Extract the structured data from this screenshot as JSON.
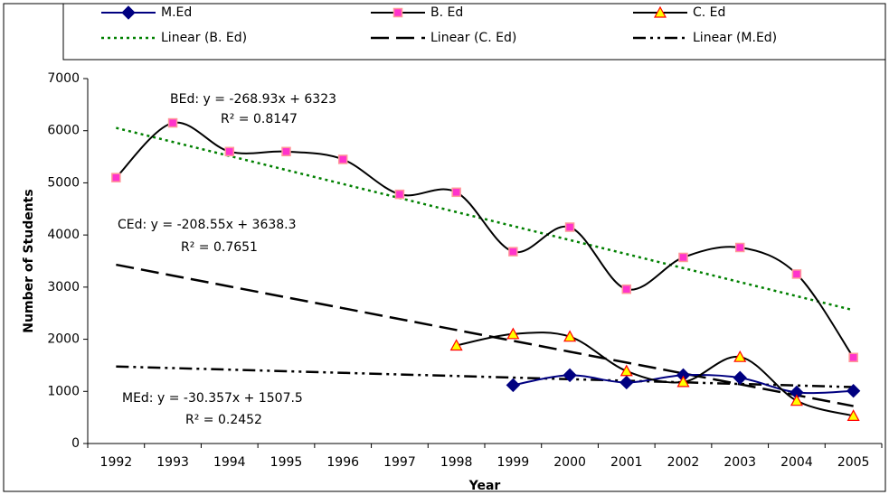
{
  "chart_data": {
    "type": "line",
    "x_label": "Year",
    "y_label": "Number of Students",
    "categories": [
      "1992",
      "1993",
      "1994",
      "1995",
      "1996",
      "1997",
      "1998",
      "1999",
      "2000",
      "2001",
      "2002",
      "2003",
      "2004",
      "2005"
    ],
    "series": [
      {
        "name": "M.Ed",
        "color": "#000080",
        "marker": "diamond",
        "values": [
          null,
          null,
          null,
          null,
          null,
          null,
          null,
          1120,
          1310,
          1170,
          1310,
          1260,
          980,
          1010
        ]
      },
      {
        "name": "B. Ed",
        "color": "#000000",
        "marker": "square",
        "values": [
          5100,
          6150,
          5600,
          5600,
          5450,
          4780,
          4820,
          3680,
          4150,
          2960,
          3570,
          3760,
          3250,
          1650
        ]
      },
      {
        "name": "C. Ed",
        "color": "#000000",
        "marker": "triangle",
        "values": [
          null,
          null,
          null,
          null,
          null,
          null,
          1880,
          2100,
          2050,
          1390,
          1180,
          1660,
          820,
          530
        ]
      }
    ],
    "trendlines": [
      {
        "name": "Linear (B. Ed)",
        "color": "#008000",
        "dash": "dotted",
        "values": [
          6054,
          5785,
          5516,
          5247,
          4978,
          4709,
          4440,
          4171,
          3903,
          3634,
          3365,
          3096,
          2827,
          2558
        ]
      },
      {
        "name": "Linear (C. Ed)",
        "color": "#000000",
        "dash": "long",
        "values": [
          3430,
          3221,
          3013,
          2804,
          2596,
          2387,
          2178,
          1970,
          1761,
          1553,
          1344,
          1136,
          927,
          718
        ]
      },
      {
        "name": "Linear (M.Ed)",
        "color": "#000000",
        "dash": "dashdotdot",
        "values": [
          1477,
          1447,
          1417,
          1386,
          1356,
          1325,
          1295,
          1265,
          1234,
          1204,
          1174,
          1143,
          1113,
          1082
        ]
      }
    ],
    "annotations": [
      {
        "equation": "BEd: y = -268.93x + 6323",
        "r2": "R² = 0.8147"
      },
      {
        "equation": "CEd: y = -208.55x + 3638.3",
        "r2": "R² = 0.7651"
      },
      {
        "equation": "MEd: y = -30.357x + 1507.5",
        "r2": "R² = 0.2452"
      }
    ],
    "ylim": [
      0,
      7000
    ],
    "yticks": [
      0,
      1000,
      2000,
      3000,
      4000,
      5000,
      6000,
      7000
    ],
    "grid": false,
    "legend": "top"
  }
}
